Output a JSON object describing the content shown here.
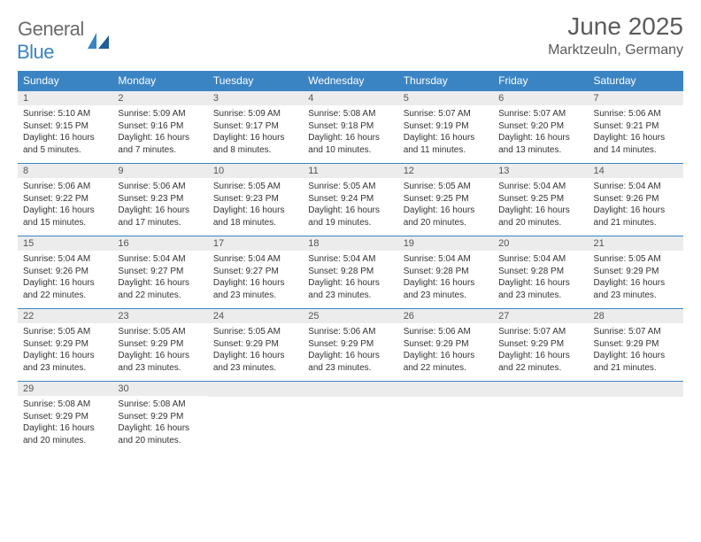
{
  "colors": {
    "header_bg": "#3b84c4",
    "header_text": "#ffffff",
    "daynum_bg": "#ececec",
    "daynum_text": "#555555",
    "body_text": "#333333",
    "cell_rule": "#3b84c4",
    "logo_gray": "#6b6b6b",
    "logo_blue": "#3b84c4",
    "page_bg": "#ffffff"
  },
  "logo": {
    "word1": "General",
    "word2": "Blue"
  },
  "title": "June 2025",
  "location": "Marktzeuln, Germany",
  "weekdays": [
    "Sunday",
    "Monday",
    "Tuesday",
    "Wednesday",
    "Thursday",
    "Friday",
    "Saturday"
  ],
  "fonts": {
    "title_pt": 28,
    "location_pt": 16,
    "weekday_pt": 12,
    "daynum_pt": 11,
    "body_pt": 10
  },
  "days": [
    {
      "n": 1,
      "sunrise": "5:10 AM",
      "sunset": "9:15 PM",
      "daylight": "16 hours and 5 minutes."
    },
    {
      "n": 2,
      "sunrise": "5:09 AM",
      "sunset": "9:16 PM",
      "daylight": "16 hours and 7 minutes."
    },
    {
      "n": 3,
      "sunrise": "5:09 AM",
      "sunset": "9:17 PM",
      "daylight": "16 hours and 8 minutes."
    },
    {
      "n": 4,
      "sunrise": "5:08 AM",
      "sunset": "9:18 PM",
      "daylight": "16 hours and 10 minutes."
    },
    {
      "n": 5,
      "sunrise": "5:07 AM",
      "sunset": "9:19 PM",
      "daylight": "16 hours and 11 minutes."
    },
    {
      "n": 6,
      "sunrise": "5:07 AM",
      "sunset": "9:20 PM",
      "daylight": "16 hours and 13 minutes."
    },
    {
      "n": 7,
      "sunrise": "5:06 AM",
      "sunset": "9:21 PM",
      "daylight": "16 hours and 14 minutes."
    },
    {
      "n": 8,
      "sunrise": "5:06 AM",
      "sunset": "9:22 PM",
      "daylight": "16 hours and 15 minutes."
    },
    {
      "n": 9,
      "sunrise": "5:06 AM",
      "sunset": "9:23 PM",
      "daylight": "16 hours and 17 minutes."
    },
    {
      "n": 10,
      "sunrise": "5:05 AM",
      "sunset": "9:23 PM",
      "daylight": "16 hours and 18 minutes."
    },
    {
      "n": 11,
      "sunrise": "5:05 AM",
      "sunset": "9:24 PM",
      "daylight": "16 hours and 19 minutes."
    },
    {
      "n": 12,
      "sunrise": "5:05 AM",
      "sunset": "9:25 PM",
      "daylight": "16 hours and 20 minutes."
    },
    {
      "n": 13,
      "sunrise": "5:04 AM",
      "sunset": "9:25 PM",
      "daylight": "16 hours and 20 minutes."
    },
    {
      "n": 14,
      "sunrise": "5:04 AM",
      "sunset": "9:26 PM",
      "daylight": "16 hours and 21 minutes."
    },
    {
      "n": 15,
      "sunrise": "5:04 AM",
      "sunset": "9:26 PM",
      "daylight": "16 hours and 22 minutes."
    },
    {
      "n": 16,
      "sunrise": "5:04 AM",
      "sunset": "9:27 PM",
      "daylight": "16 hours and 22 minutes."
    },
    {
      "n": 17,
      "sunrise": "5:04 AM",
      "sunset": "9:27 PM",
      "daylight": "16 hours and 23 minutes."
    },
    {
      "n": 18,
      "sunrise": "5:04 AM",
      "sunset": "9:28 PM",
      "daylight": "16 hours and 23 minutes."
    },
    {
      "n": 19,
      "sunrise": "5:04 AM",
      "sunset": "9:28 PM",
      "daylight": "16 hours and 23 minutes."
    },
    {
      "n": 20,
      "sunrise": "5:04 AM",
      "sunset": "9:28 PM",
      "daylight": "16 hours and 23 minutes."
    },
    {
      "n": 21,
      "sunrise": "5:05 AM",
      "sunset": "9:29 PM",
      "daylight": "16 hours and 23 minutes."
    },
    {
      "n": 22,
      "sunrise": "5:05 AM",
      "sunset": "9:29 PM",
      "daylight": "16 hours and 23 minutes."
    },
    {
      "n": 23,
      "sunrise": "5:05 AM",
      "sunset": "9:29 PM",
      "daylight": "16 hours and 23 minutes."
    },
    {
      "n": 24,
      "sunrise": "5:05 AM",
      "sunset": "9:29 PM",
      "daylight": "16 hours and 23 minutes."
    },
    {
      "n": 25,
      "sunrise": "5:06 AM",
      "sunset": "9:29 PM",
      "daylight": "16 hours and 23 minutes."
    },
    {
      "n": 26,
      "sunrise": "5:06 AM",
      "sunset": "9:29 PM",
      "daylight": "16 hours and 22 minutes."
    },
    {
      "n": 27,
      "sunrise": "5:07 AM",
      "sunset": "9:29 PM",
      "daylight": "16 hours and 22 minutes."
    },
    {
      "n": 28,
      "sunrise": "5:07 AM",
      "sunset": "9:29 PM",
      "daylight": "16 hours and 21 minutes."
    },
    {
      "n": 29,
      "sunrise": "5:08 AM",
      "sunset": "9:29 PM",
      "daylight": "16 hours and 20 minutes."
    },
    {
      "n": 30,
      "sunrise": "5:08 AM",
      "sunset": "9:29 PM",
      "daylight": "16 hours and 20 minutes."
    }
  ],
  "labels": {
    "sunrise": "Sunrise:",
    "sunset": "Sunset:",
    "daylight": "Daylight:"
  },
  "layout": {
    "first_weekday_index": 0,
    "total_cells": 35
  }
}
